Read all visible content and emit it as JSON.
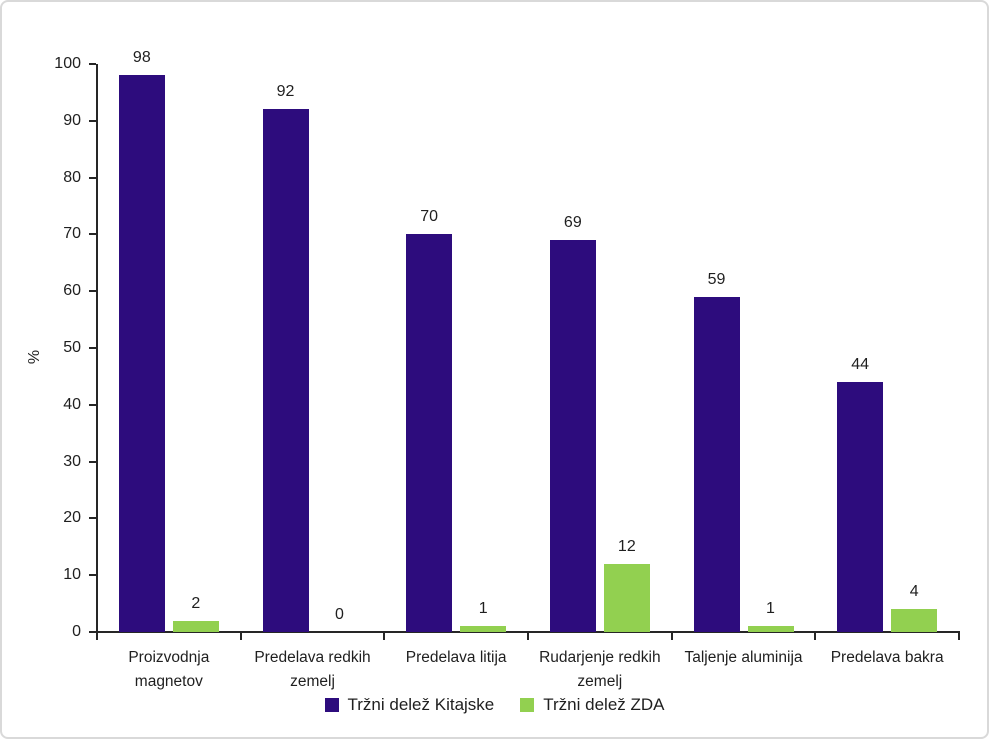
{
  "figure": {
    "background_color": "#ffffff",
    "border_color": "#d9d9d9",
    "axis_color": "#262626",
    "text_color": "#1f1f1f"
  },
  "chart_data": {
    "type": "bar",
    "title": "",
    "xlabel": "",
    "ylabel": "%",
    "ylim": [
      0,
      100
    ],
    "y_ticks": [
      0,
      10,
      20,
      30,
      40,
      50,
      60,
      70,
      80,
      90,
      100
    ],
    "grid": false,
    "data_labels": true,
    "legend_position": "bottom",
    "categories": [
      "Proizvodnja magnetov",
      "Predelava redkih zemelj",
      "Predelava litija",
      "Rudarjenje redkih zemelj",
      "Taljenje aluminija",
      "Predelava bakra"
    ],
    "series": [
      {
        "name": "Tržni delež Kitajske",
        "color": "#2d0c7d",
        "values": [
          98,
          92,
          70,
          69,
          59,
          44
        ]
      },
      {
        "name": "Tržni delež ZDA",
        "color": "#92d050",
        "values": [
          2,
          0,
          1,
          12,
          1,
          4
        ]
      }
    ]
  }
}
